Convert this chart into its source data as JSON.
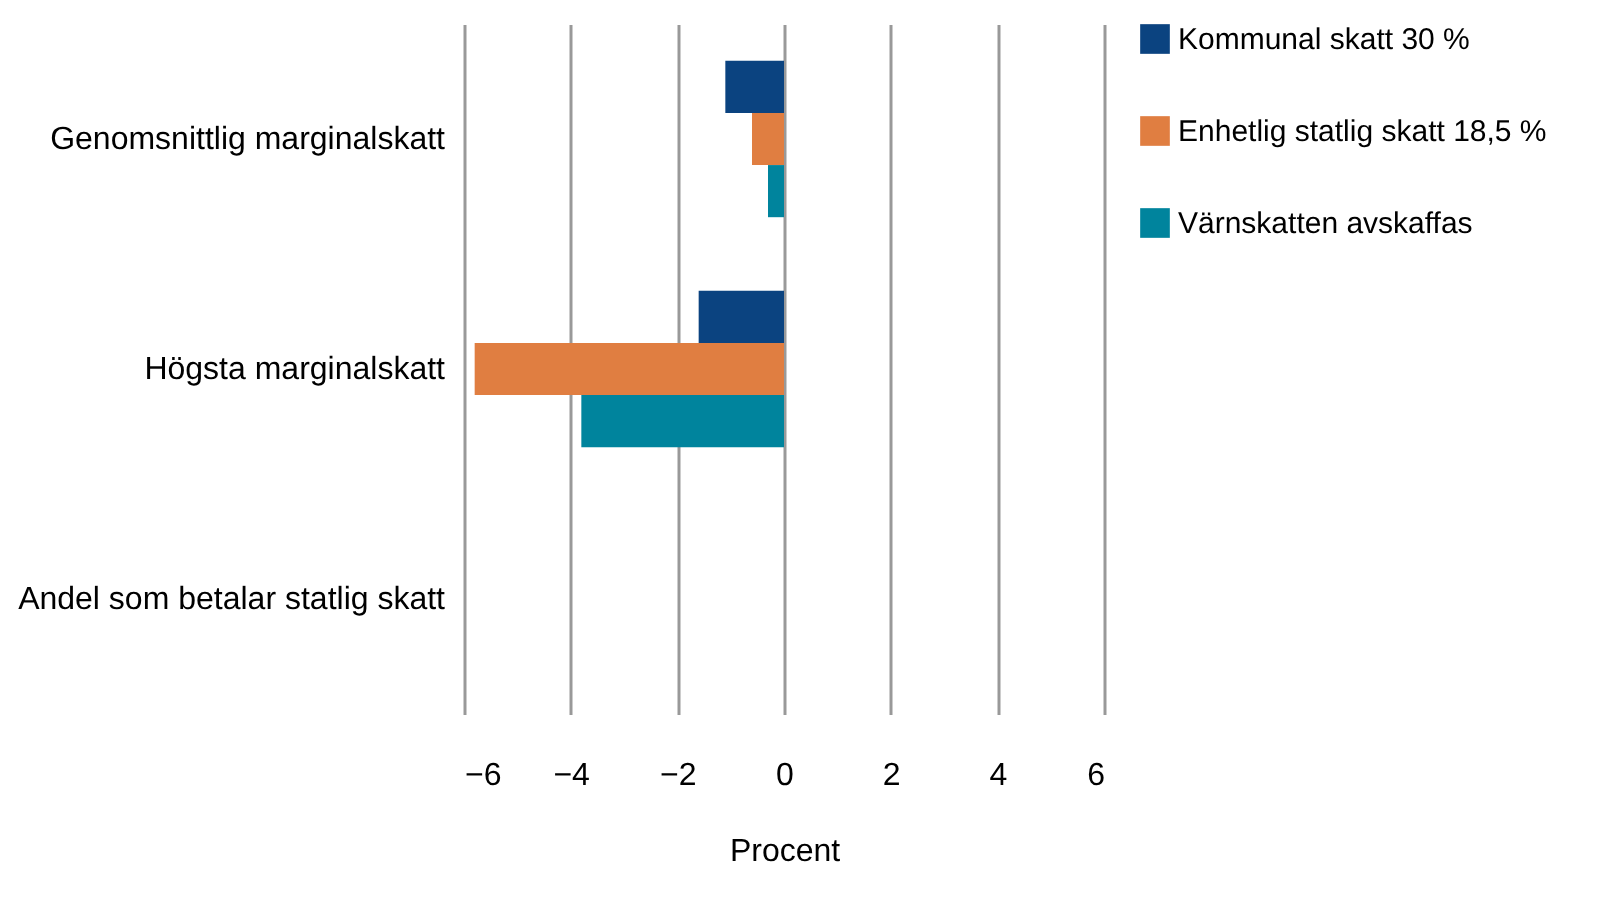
{
  "chart_data": {
    "type": "bar",
    "orientation": "horizontal",
    "xlabel": "Procent",
    "categories": [
      "Genomsnittlig marginalskatt",
      "Högsta marginalskatt",
      "Andel som betalar statlig skatt"
    ],
    "series": [
      {
        "name": "Kommunal skatt 30 %",
        "color": "#0b4380",
        "values": [
          -1.1,
          -1.6,
          null
        ]
      },
      {
        "name": "Enhetlig statlig skatt 18,5 %",
        "color": "#e07e41",
        "values": [
          -0.6,
          -5.8,
          null
        ]
      },
      {
        "name": "Värnskatten avskaffas",
        "color": "#00849d",
        "values": [
          -0.3,
          -3.8,
          null
        ]
      }
    ],
    "xlim": [
      -6,
      6
    ],
    "xticks": [
      -6,
      -4,
      -2,
      0,
      2,
      4,
      6
    ],
    "grid": "x",
    "legend": "right"
  }
}
